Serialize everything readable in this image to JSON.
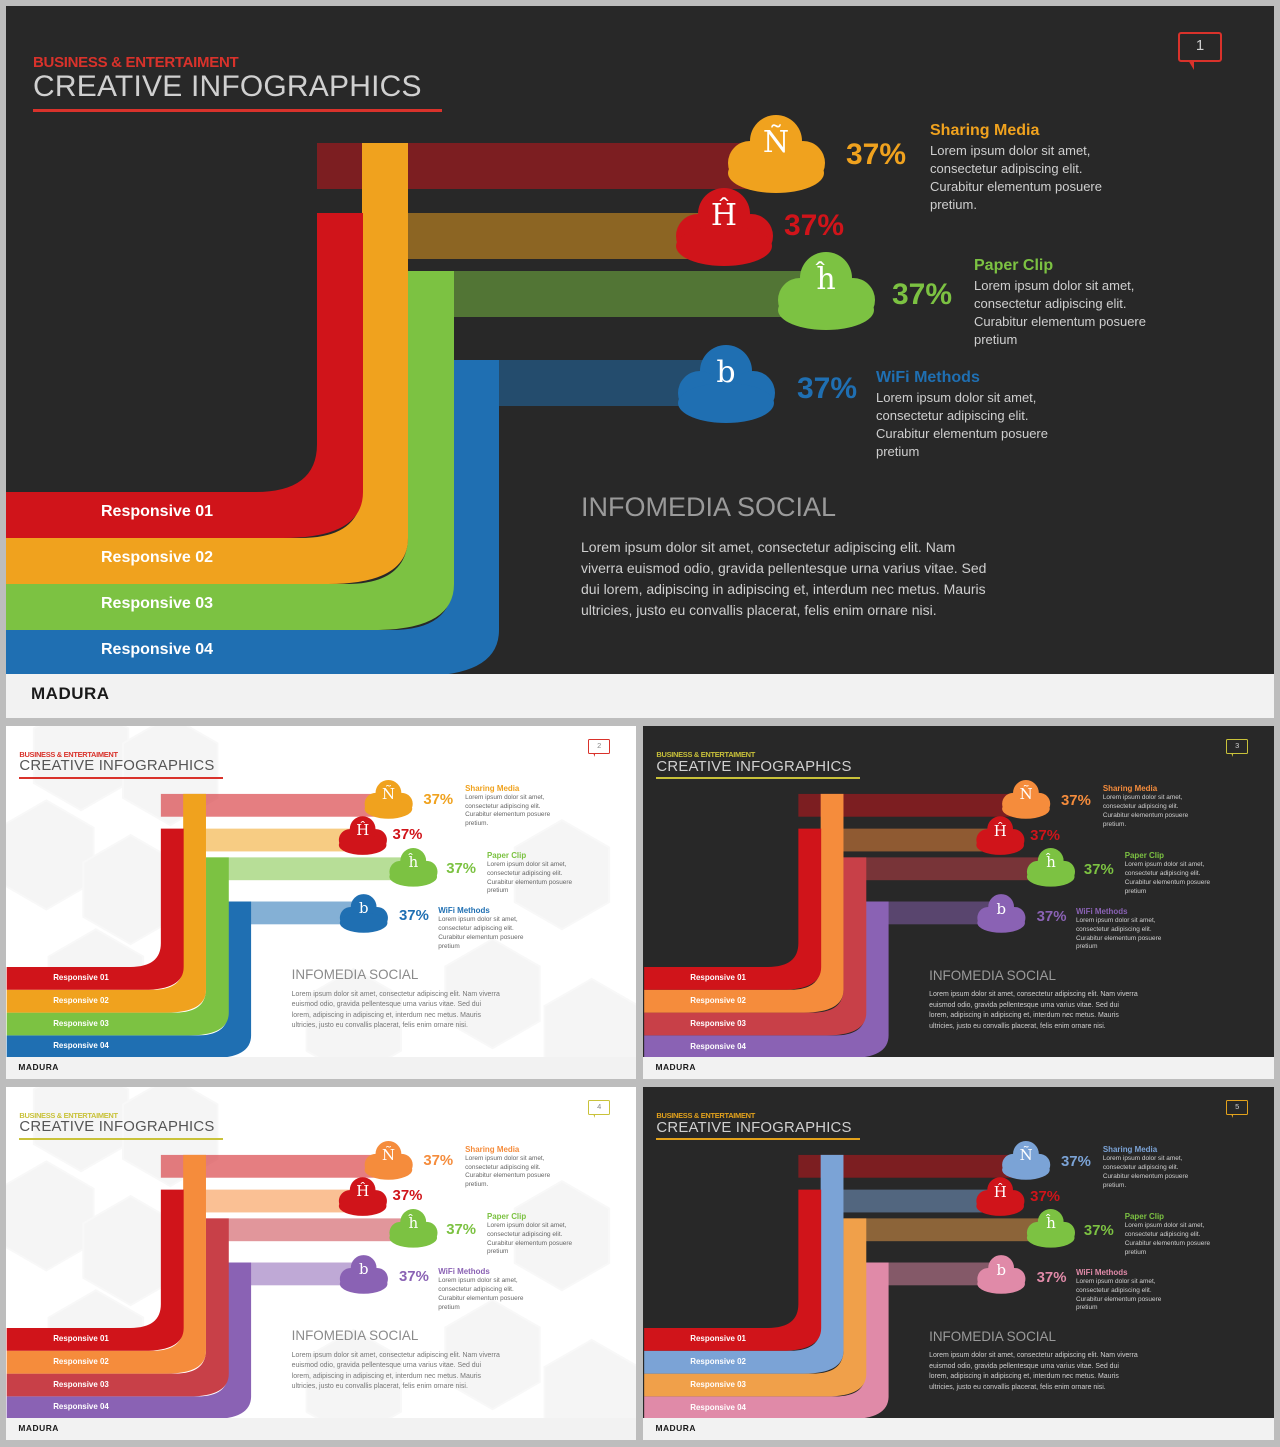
{
  "slides": [
    {
      "number": "1",
      "kicker": "BUSINESS & ENTERTAIMENT",
      "title": "CREATIVE INFOGRAPHICS",
      "background": "#282828",
      "text_color": "#dddddd",
      "sub_color": "#9a9a9a",
      "accent": "#d9322b",
      "items": [
        {
          "icon": "Ñ",
          "percent": "37%",
          "color": "#f0a21e",
          "label": "Sharing Media",
          "desc": "Lorem ipsum dolor sit amet, consectetur adipiscing elit. Curabitur elementum posuere pretium."
        },
        {
          "icon": "Ĥ",
          "percent": "37%",
          "color": "#d0141a",
          "label": "",
          "desc": ""
        },
        {
          "icon": "ĥ",
          "percent": "37%",
          "color": "#7cc242",
          "label": "Paper Clip",
          "desc": "Lorem ipsum dolor sit amet, consectetur adipiscing elit. Curabitur elementum posuere pretium"
        },
        {
          "icon": "b",
          "percent": "37%",
          "color": "#1f6fb2",
          "label": "WiFi Methods",
          "desc": "Lorem ipsum dolor sit amet, consectetur adipiscing elit. Curabitur elementum posuere pretium"
        }
      ],
      "bands": [
        {
          "label": "Responsive 01",
          "color": "#d0141a"
        },
        {
          "label": "Responsive 02",
          "color": "#f0a21e"
        },
        {
          "label": "Responsive 03",
          "color": "#7cc242"
        },
        {
          "label": "Responsive 04",
          "color": "#1f6fb2"
        }
      ],
      "heading": "INFOMEDIA SOCIAL",
      "body": "Lorem ipsum dolor sit amet, consectetur adipiscing elit. Nam viverra euismod odio, gravida pellentesque urna varius vitae. Sed dui lorem, adipiscing in adipiscing et, interdum nec metus. Mauris ultricies, justo eu convallis placerat, felis enim ornare nisi.",
      "brand": "MADURA"
    },
    {
      "number": "2",
      "kicker": "BUSINESS & ENTERTAIMENT",
      "title": "CREATIVE INFOGRAPHICS",
      "background": "#ffffff",
      "text_color": "#444444",
      "sub_color": "#8a8a8a",
      "accent": "#d9322b",
      "items": [
        {
          "icon": "Ñ",
          "percent": "37%",
          "color": "#f0a21e",
          "label": "Sharing Media",
          "desc": "Lorem ipsum dolor sit amet, consectetur adipiscing elit. Curabitur elementum posuere pretium."
        },
        {
          "icon": "Ĥ",
          "percent": "37%",
          "color": "#d0141a",
          "label": "",
          "desc": ""
        },
        {
          "icon": "ĥ",
          "percent": "37%",
          "color": "#7cc242",
          "label": "Paper Clip",
          "desc": "Lorem ipsum dolor sit amet, consectetur adipiscing elit. Curabitur elementum posuere pretium"
        },
        {
          "icon": "b",
          "percent": "37%",
          "color": "#1f6fb2",
          "label": "WiFi Methods",
          "desc": "Lorem ipsum dolor sit amet, consectetur adipiscing elit. Curabitur elementum posuere pretium"
        }
      ],
      "bands": [
        {
          "label": "Responsive 01",
          "color": "#d0141a"
        },
        {
          "label": "Responsive 02",
          "color": "#f0a21e"
        },
        {
          "label": "Responsive 03",
          "color": "#7cc242"
        },
        {
          "label": "Responsive 04",
          "color": "#1f6fb2"
        }
      ],
      "heading": "INFOMEDIA SOCIAL",
      "body": "Lorem ipsum dolor sit amet, consectetur adipiscing elit. Nam viverra euismod odio, gravida pellentesque urna varius vitae. Sed dui lorem, adipiscing in adipiscing et, interdum nec metus. Mauris ultricies, justo eu convallis placerat, felis enim ornare nisi.",
      "brand": "MADURA"
    },
    {
      "number": "3",
      "kicker": "BUSINESS & ENTERTAIMENT",
      "title": "CREATIVE INFOGRAPHICS",
      "background": "#282828",
      "text_color": "#dddddd",
      "sub_color": "#9a9a9a",
      "accent": "#c9c23a",
      "items": [
        {
          "icon": "Ñ",
          "percent": "37%",
          "color": "#f58c3c",
          "label": "Sharing Media",
          "desc": "Lorem ipsum dolor sit amet, consectetur adipiscing elit. Curabitur elementum posuere pretium."
        },
        {
          "icon": "Ĥ",
          "percent": "37%",
          "color": "#d0141a",
          "label": "",
          "desc": ""
        },
        {
          "icon": "ĥ",
          "percent": "37%",
          "color": "#7cc242",
          "label": "Paper Clip",
          "desc": "Lorem ipsum dolor sit amet, consectetur adipiscing elit. Curabitur elementum posuere pretium"
        },
        {
          "icon": "b",
          "percent": "37%",
          "color": "#8a62b4",
          "label": "WiFi Methods",
          "desc": "Lorem ipsum dolor sit amet, consectetur adipiscing elit. Curabitur elementum posuere pretium"
        }
      ],
      "bands": [
        {
          "label": "Responsive 01",
          "color": "#d0141a"
        },
        {
          "label": "Responsive 02",
          "color": "#f58c3c"
        },
        {
          "label": "Responsive 03",
          "color": "#c84048"
        },
        {
          "label": "Responsive 04",
          "color": "#8a62b4"
        }
      ],
      "heading": "INFOMEDIA SOCIAL",
      "body": "Lorem ipsum dolor sit amet, consectetur adipiscing elit. Nam viverra euismod odio, gravida pellentesque urna varius vitae. Sed dui lorem, adipiscing in adipiscing et, interdum nec metus. Mauris ultricies, justo eu convallis placerat, felis enim ornare nisi.",
      "brand": "MADURA"
    },
    {
      "number": "4",
      "kicker": "BUSINESS & ENTERTAIMENT",
      "title": "CREATIVE INFOGRAPHICS",
      "background": "#ffffff",
      "text_color": "#444444",
      "sub_color": "#8a8a8a",
      "accent": "#c9c23a",
      "items": [
        {
          "icon": "Ñ",
          "percent": "37%",
          "color": "#f58c3c",
          "label": "Sharing Media",
          "desc": "Lorem ipsum dolor sit amet, consectetur adipiscing elit. Curabitur elementum posuere pretium."
        },
        {
          "icon": "Ĥ",
          "percent": "37%",
          "color": "#d0141a",
          "label": "",
          "desc": ""
        },
        {
          "icon": "ĥ",
          "percent": "37%",
          "color": "#7cc242",
          "label": "Paper Clip",
          "desc": "Lorem ipsum dolor sit amet, consectetur adipiscing elit. Curabitur elementum posuere pretium"
        },
        {
          "icon": "b",
          "percent": "37%",
          "color": "#8a62b4",
          "label": "WiFi Methods",
          "desc": "Lorem ipsum dolor sit amet, consectetur adipiscing elit. Curabitur elementum posuere pretium"
        }
      ],
      "bands": [
        {
          "label": "Responsive 01",
          "color": "#d0141a"
        },
        {
          "label": "Responsive 02",
          "color": "#f58c3c"
        },
        {
          "label": "Responsive 03",
          "color": "#c84048"
        },
        {
          "label": "Responsive 04",
          "color": "#8a62b4"
        }
      ],
      "heading": "INFOMEDIA SOCIAL",
      "body": "Lorem ipsum dolor sit amet, consectetur adipiscing elit. Nam viverra euismod odio, gravida pellentesque urna varius vitae. Sed dui lorem, adipiscing in adipiscing et, interdum nec metus. Mauris ultricies, justo eu convallis placerat, felis enim ornare nisi.",
      "brand": "MADURA"
    },
    {
      "number": "5",
      "kicker": "BUSINESS & ENTERTAIMENT",
      "title": "CREATIVE INFOGRAPHICS",
      "background": "#282828",
      "text_color": "#dddddd",
      "sub_color": "#9a9a9a",
      "accent": "#e3a21c",
      "items": [
        {
          "icon": "Ñ",
          "percent": "37%",
          "color": "#7ba3d6",
          "label": "Sharing Media",
          "desc": "Lorem ipsum dolor sit amet, consectetur adipiscing elit. Curabitur elementum posuere pretium."
        },
        {
          "icon": "Ĥ",
          "percent": "37%",
          "color": "#d0141a",
          "label": "",
          "desc": ""
        },
        {
          "icon": "ĥ",
          "percent": "37%",
          "color": "#7cc242",
          "label": "Paper Clip",
          "desc": "Lorem ipsum dolor sit amet, consectetur adipiscing elit. Curabitur elementum posuere pretium"
        },
        {
          "icon": "b",
          "percent": "37%",
          "color": "#e08aa8",
          "label": "WiFi Methods",
          "desc": "Lorem ipsum dolor sit amet, consectetur adipiscing elit. Curabitur elementum posuere pretium"
        }
      ],
      "bands": [
        {
          "label": "Responsive 01",
          "color": "#d0141a"
        },
        {
          "label": "Responsive 02",
          "color": "#7ba3d6"
        },
        {
          "label": "Responsive 03",
          "color": "#f0a04a"
        },
        {
          "label": "Responsive 04",
          "color": "#e08aa8"
        }
      ],
      "heading": "INFOMEDIA SOCIAL",
      "body": "Lorem ipsum dolor sit amet, consectetur adipiscing elit. Nam viverra euismod odio, gravida pellentesque urna varius vitae. Sed dui lorem, adipiscing in adipiscing et, interdum nec metus. Mauris ultricies, justo eu convallis placerat, felis enim ornare nisi.",
      "brand": "MADURA"
    }
  ]
}
